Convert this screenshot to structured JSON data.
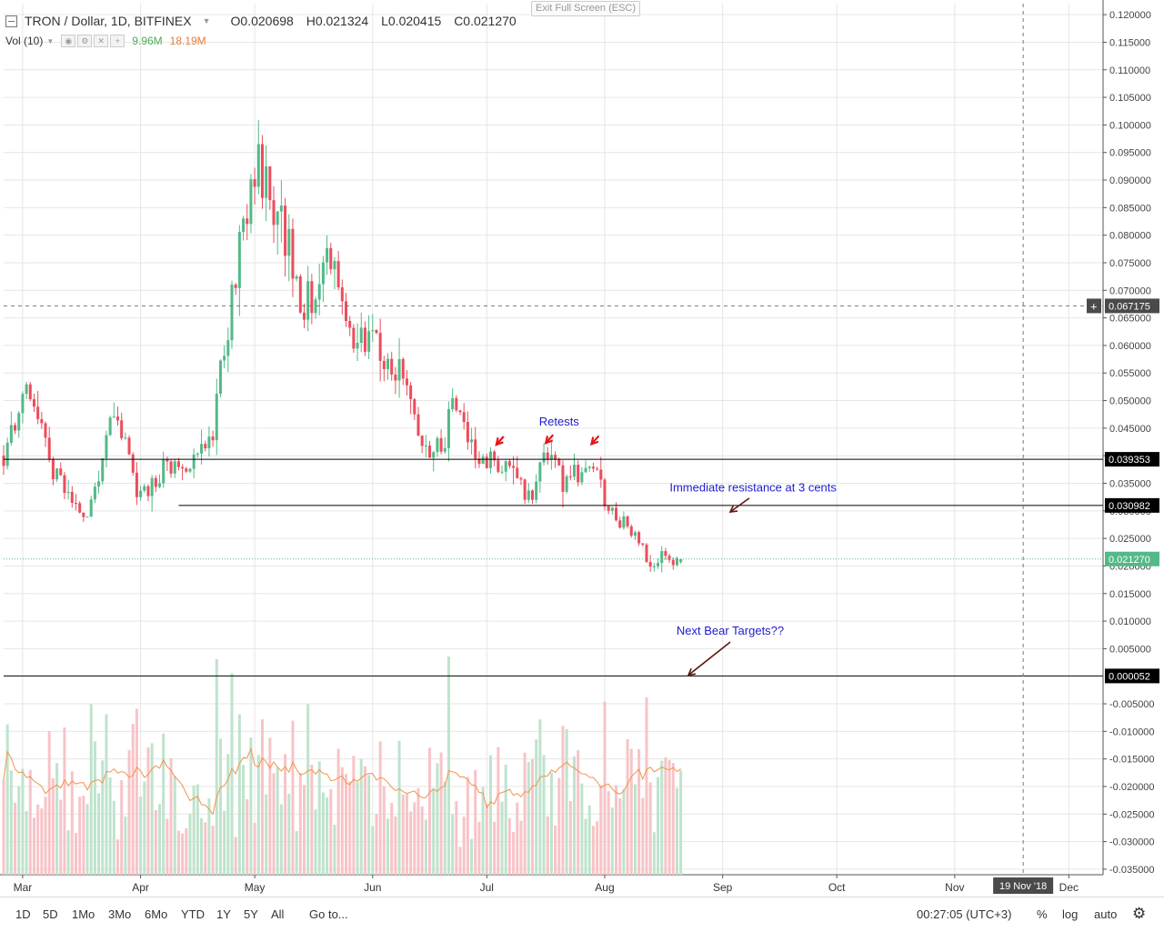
{
  "legend": {
    "symbol": "TRON / Dollar, 1D, BITFINEX",
    "open": "O0.020698",
    "high": "H0.021324",
    "low": "L0.020415",
    "close": "C0.021270",
    "vol_label": "Vol (10)",
    "vol_value_a": "9.96M",
    "vol_value_b": "18.19M"
  },
  "exit_fullscreen_label": "Exit Full Screen (ESC)",
  "bottom_toolbar": {
    "ranges": [
      "1D",
      "5D",
      "1Mo",
      "3Mo",
      "6Mo",
      "YTD",
      "1Y",
      "5Y",
      "All"
    ],
    "goto": "Go to...",
    "clock": "00:27:05 (UTC+3)",
    "percent": "%",
    "log": "log",
    "auto": "auto"
  },
  "colors": {
    "up": "#53b987",
    "down": "#eb4d5c",
    "vol_up": "#bfe3cd",
    "vol_down": "#f7c4c7",
    "vol_ma": "#f2944b",
    "annotation": "#1c1ccf",
    "arrow_red": "#e8141a",
    "arrow_dark": "#5a1a12",
    "current_price": "#53b987"
  },
  "chart_data": {
    "type": "candlestick",
    "symbol": "TRON / Dollar",
    "interval": "1D",
    "exchange": "BITFINEX",
    "y_axis": {
      "range": [
        -0.036,
        0.122
      ],
      "ticks": [
        "0.120000",
        "0.115000",
        "0.110000",
        "0.105000",
        "0.100000",
        "0.095000",
        "0.090000",
        "0.085000",
        "0.080000",
        "0.075000",
        "0.070000",
        "0.065000",
        "0.060000",
        "0.055000",
        "0.050000",
        "0.045000",
        "0.040000",
        "0.035000",
        "0.030000",
        "0.025000",
        "0.020000",
        "0.015000",
        "0.010000",
        "0.005000",
        "-0.005000",
        "-0.010000",
        "-0.015000",
        "-0.020000",
        "-0.025000",
        "-0.030000",
        "-0.035000"
      ]
    },
    "x_axis": {
      "start_date": "2018-02-24",
      "end_date": "2018-12-10",
      "month_labels": [
        {
          "date": "2018-03-01",
          "label": "Mar"
        },
        {
          "date": "2018-04-01",
          "label": "Apr"
        },
        {
          "date": "2018-05-01",
          "label": "May"
        },
        {
          "date": "2018-06-01",
          "label": "Jun"
        },
        {
          "date": "2018-07-01",
          "label": "Jul"
        },
        {
          "date": "2018-08-01",
          "label": "Aug"
        },
        {
          "date": "2018-09-01",
          "label": "Sep"
        },
        {
          "date": "2018-10-01",
          "label": "Oct"
        },
        {
          "date": "2018-11-01",
          "label": "Nov"
        },
        {
          "date": "2018-12-01",
          "label": "Dec"
        }
      ],
      "crosshair_date": "2018-11-19",
      "crosshair_label": "19 Nov '18"
    },
    "crosshair_price": 0.067175,
    "crosshair_price_label": "0.067175",
    "levels": [
      {
        "value": 0.039353,
        "label": "0.039353",
        "from": "2018-02-24"
      },
      {
        "value": 0.030982,
        "label": "0.030982",
        "from": "2018-04-11"
      },
      {
        "value": 5.2e-05,
        "label": "0.000052",
        "from": "2018-02-24"
      }
    ],
    "current_price": {
      "value": 0.02127,
      "label": "0.021270"
    },
    "anchors": [
      {
        "date": "2018-02-24",
        "close": 0.04
      },
      {
        "date": "2018-03-03",
        "close": 0.053
      },
      {
        "date": "2018-03-09",
        "close": 0.037
      },
      {
        "date": "2018-03-18",
        "close": 0.029
      },
      {
        "date": "2018-03-25",
        "close": 0.048
      },
      {
        "date": "2018-04-01",
        "close": 0.032
      },
      {
        "date": "2018-04-07",
        "close": 0.038
      },
      {
        "date": "2018-04-13",
        "close": 0.037
      },
      {
        "date": "2018-04-20",
        "close": 0.045
      },
      {
        "date": "2018-04-27",
        "close": 0.078
      },
      {
        "date": "2018-05-01",
        "close": 0.093
      },
      {
        "date": "2018-05-05",
        "close": 0.088
      },
      {
        "date": "2018-05-10",
        "close": 0.078
      },
      {
        "date": "2018-05-13",
        "close": 0.066
      },
      {
        "date": "2018-05-17",
        "close": 0.07
      },
      {
        "date": "2018-05-20",
        "close": 0.08
      },
      {
        "date": "2018-05-23",
        "close": 0.069
      },
      {
        "date": "2018-05-28",
        "close": 0.061
      },
      {
        "date": "2018-06-02",
        "close": 0.06
      },
      {
        "date": "2018-06-09",
        "close": 0.054
      },
      {
        "date": "2018-06-14",
        "close": 0.041
      },
      {
        "date": "2018-06-20",
        "close": 0.042
      },
      {
        "date": "2018-06-22",
        "close": 0.05
      },
      {
        "date": "2018-06-29",
        "close": 0.038
      },
      {
        "date": "2018-07-03",
        "close": 0.039
      },
      {
        "date": "2018-07-07",
        "close": 0.039
      },
      {
        "date": "2018-07-12",
        "close": 0.032
      },
      {
        "date": "2018-07-17",
        "close": 0.041
      },
      {
        "date": "2018-07-21",
        "close": 0.035
      },
      {
        "date": "2018-07-24",
        "close": 0.037
      },
      {
        "date": "2018-07-29",
        "close": 0.038
      },
      {
        "date": "2018-08-02",
        "close": 0.03
      },
      {
        "date": "2018-08-07",
        "close": 0.027
      },
      {
        "date": "2018-08-11",
        "close": 0.023
      },
      {
        "date": "2018-08-13",
        "close": 0.019
      },
      {
        "date": "2018-08-16",
        "close": 0.023
      },
      {
        "date": "2018-08-19",
        "close": 0.02
      },
      {
        "date": "2018-08-21",
        "close": 0.0213
      }
    ],
    "annotations": [
      {
        "text": "Retests",
        "date": "2018-07-20",
        "price": 0.0455
      },
      {
        "text": "Immediate resistance at 3 cents",
        "date": "2018-09-09",
        "price": 0.0335
      },
      {
        "text": "Next Bear Targets??",
        "date": "2018-09-03",
        "price": 0.0075
      }
    ],
    "grid": true,
    "volume_pane": true
  }
}
